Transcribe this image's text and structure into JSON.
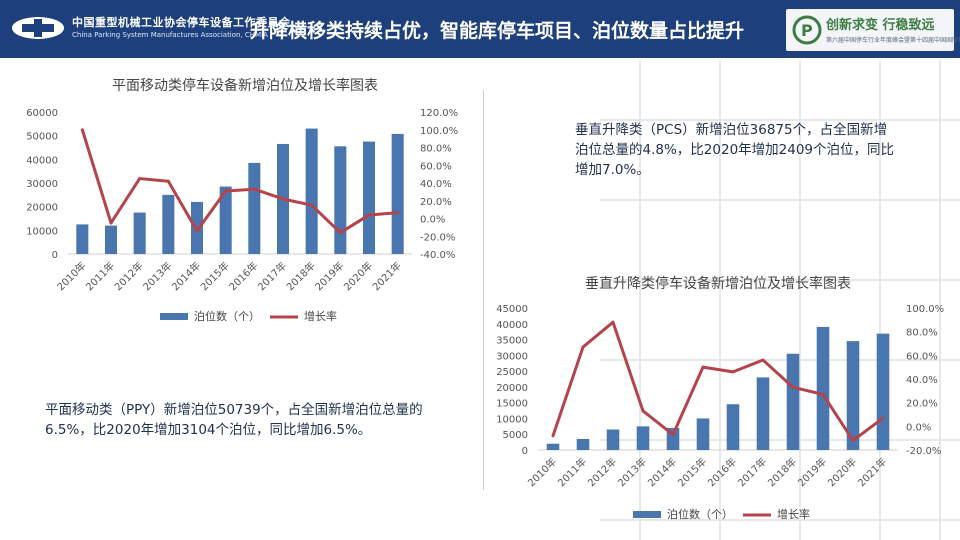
{
  "header": {
    "org_name_cn": "中国重型机械工业协会停车设备工作委员会",
    "org_name_en": "China Parking System Manufactures Association, CHMIA",
    "title": "升降横移类持续占优，智能库停车项目、泊位数量占比提升",
    "slogan": "创新求变  行稳致远",
    "slogan_sub": "第六届中国停车行业年度峰会暨第十四届中国国际停车设备展览会",
    "brand_color": "#1d3f7c"
  },
  "text_ppy": "平面移动类（PPY）新增泊位50739个，占全国新增泊位总量的6.5%，比2020年增加3104个泊位，同比增加6.5%。",
  "text_pcs": "垂直升降类（PCS）新增泊位36875个，占全国新增泊位总量的4.8%，比2020年增加2409个泊位，同比增加7.0%。",
  "chart_data": [
    {
      "type": "bar+line",
      "title": "平面移动类停车设备新增泊位及增长率图表",
      "categories": [
        "2010年",
        "2011年",
        "2012年",
        "2013年",
        "2014年",
        "2015年",
        "2016年",
        "2017年",
        "2018年",
        "2019年",
        "2020年",
        "2021年"
      ],
      "series": [
        {
          "name": "泊位数（个）",
          "type": "bar",
          "axis": "left",
          "color": "#4a76b0",
          "values": [
            12500,
            12000,
            17500,
            25000,
            22000,
            28500,
            38500,
            46500,
            53000,
            45500,
            47500,
            50739
          ]
        },
        {
          "name": "增长率",
          "type": "line",
          "axis": "right",
          "color": "#b5434a",
          "values": [
            100.0,
            -5.0,
            45.0,
            42.0,
            -14.0,
            31.0,
            33.0,
            22.0,
            15.0,
            -16.0,
            4.0,
            6.5
          ]
        }
      ],
      "y_left": {
        "min": 0,
        "max": 60000,
        "step": 10000,
        "ticks": [
          "0",
          "10000",
          "20000",
          "30000",
          "40000",
          "50000",
          "60000"
        ]
      },
      "y_right": {
        "min": -40,
        "max": 120,
        "step": 20,
        "ticks": [
          "-40.0%",
          "-20.0%",
          "0.0%",
          "20.0%",
          "40.0%",
          "60.0%",
          "80.0%",
          "100.0%",
          "120.0%"
        ]
      },
      "legend": "bottom"
    },
    {
      "type": "bar+line",
      "title": "垂直升降类停车设备新增泊位及增长率图表",
      "categories": [
        "2010年",
        "2011年",
        "2012年",
        "2013年",
        "2014年",
        "2015年",
        "2016年",
        "2017年",
        "2018年",
        "2019年",
        "2020年",
        "2021年"
      ],
      "series": [
        {
          "name": "泊位数（个）",
          "type": "bar",
          "axis": "left",
          "color": "#4a76b0",
          "values": [
            2000,
            3500,
            6500,
            7500,
            7000,
            10000,
            14500,
            23000,
            30500,
            39000,
            34500,
            36875
          ]
        },
        {
          "name": "增长率",
          "type": "line",
          "axis": "right",
          "color": "#b5434a",
          "values": [
            -8.0,
            67.0,
            88.0,
            13.0,
            -7.0,
            50.0,
            46.0,
            56.0,
            33.0,
            27.0,
            -12.0,
            7.0
          ]
        }
      ],
      "y_left": {
        "min": 0,
        "max": 45000,
        "step": 5000,
        "ticks": [
          "0",
          "5000",
          "10000",
          "15000",
          "20000",
          "25000",
          "30000",
          "35000",
          "40000",
          "45000"
        ]
      },
      "y_right": {
        "min": -20,
        "max": 100,
        "step": 20,
        "ticks": [
          "-20.0%",
          "0.0%",
          "20.0%",
          "40.0%",
          "60.0%",
          "80.0%",
          "100.0%"
        ]
      },
      "legend": "bottom"
    }
  ]
}
